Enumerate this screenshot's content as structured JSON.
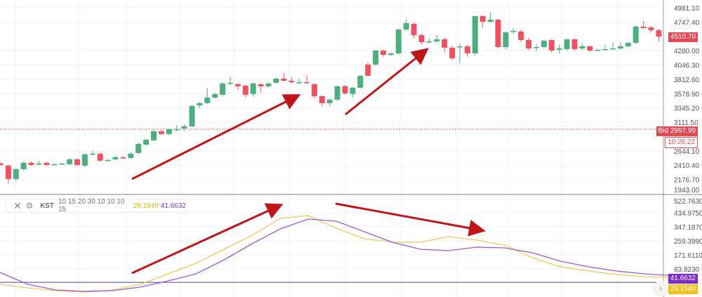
{
  "colors": {
    "up": "#4caf7d",
    "down": "#ef5361",
    "kst": "#9b59d0",
    "signal": "#f0c85a",
    "arrow": "#c0161b",
    "bid": "#e04a55"
  },
  "chart_data": [
    {
      "type": "candlestick",
      "grid": true,
      "y_ticks": [
        "4981.10",
        "4747.40",
        "4280.00",
        "4046.30",
        "3812.60",
        "3578.90",
        "3345.20",
        "3111.50",
        "2644.10",
        "2410.40",
        "2176.70",
        "1943.00"
      ],
      "ylim": [
        1943,
        4981.1
      ],
      "last_price": "4510.70",
      "bid_label": "Bid 2997.99",
      "bid": 2997.99,
      "countdown": "10:26:22",
      "candles": [
        [
          2437,
          2460,
          2400,
          2414
        ],
        [
          2403,
          2420,
          2110,
          2185
        ],
        [
          2185,
          2360,
          2150,
          2345
        ],
        [
          2345,
          2470,
          2320,
          2449
        ],
        [
          2449,
          2470,
          2400,
          2414
        ],
        [
          2437,
          2480,
          2410,
          2437
        ],
        [
          2449,
          2460,
          2400,
          2414
        ],
        [
          2426,
          2440,
          2410,
          2426
        ],
        [
          2437,
          2450,
          2420,
          2437
        ],
        [
          2426,
          2520,
          2410,
          2506
        ],
        [
          2506,
          2520,
          2390,
          2414
        ],
        [
          2403,
          2600,
          2380,
          2586
        ],
        [
          2598,
          2640,
          2570,
          2598
        ],
        [
          2598,
          2610,
          2470,
          2483
        ],
        [
          2494,
          2510,
          2480,
          2494
        ],
        [
          2506,
          2560,
          2490,
          2540
        ],
        [
          2540,
          2560,
          2510,
          2529
        ],
        [
          2529,
          2620,
          2510,
          2598
        ],
        [
          2609,
          2780,
          2590,
          2758
        ],
        [
          2746,
          2840,
          2730,
          2827
        ],
        [
          2815,
          2990,
          2800,
          2964
        ],
        [
          2964,
          2980,
          2900,
          2918
        ],
        [
          2918,
          3010,
          2900,
          2999
        ],
        [
          2999,
          3060,
          2960,
          2999
        ],
        [
          3010,
          3080,
          2970,
          3044
        ],
        [
          3044,
          3390,
          3030,
          3377
        ],
        [
          3388,
          3450,
          3340,
          3423
        ],
        [
          3423,
          3670,
          3410,
          3514
        ],
        [
          3514,
          3590,
          3500,
          3572
        ],
        [
          3560,
          3760,
          3540,
          3744
        ],
        [
          3755,
          3860,
          3720,
          3755
        ],
        [
          3732,
          3750,
          3640,
          3698
        ],
        [
          3709,
          3720,
          3520,
          3560
        ],
        [
          3572,
          3760,
          3530,
          3744
        ],
        [
          3732,
          3750,
          3600,
          3698
        ],
        [
          3698,
          3760,
          3680,
          3744
        ],
        [
          3755,
          3840,
          3740,
          3824
        ],
        [
          3824,
          3920,
          3780,
          3789
        ],
        [
          3789,
          3850,
          3740,
          3766
        ],
        [
          3766,
          3830,
          3730,
          3766
        ],
        [
          3766,
          3880,
          3740,
          3755
        ],
        [
          3732,
          3750,
          3500,
          3537
        ],
        [
          3537,
          3550,
          3380,
          3423
        ],
        [
          3423,
          3500,
          3370,
          3480
        ],
        [
          3480,
          3710,
          3460,
          3698
        ],
        [
          3698,
          3720,
          3560,
          3583
        ],
        [
          3572,
          3690,
          3520,
          3675
        ],
        [
          3675,
          3880,
          3660,
          3870
        ],
        [
          4053,
          4090,
          3860,
          3870
        ],
        [
          4053,
          4300,
          4030,
          4282
        ],
        [
          4282,
          4300,
          4180,
          4213
        ],
        [
          4213,
          4250,
          4190,
          4236
        ],
        [
          4236,
          4640,
          4210,
          4626
        ],
        [
          4626,
          4800,
          4600,
          4729
        ],
        [
          4718,
          4740,
          4480,
          4534
        ],
        [
          4534,
          4560,
          4380,
          4420
        ],
        [
          4431,
          4480,
          4400,
          4431
        ],
        [
          4431,
          4540,
          4410,
          4465
        ],
        [
          4465,
          4490,
          4260,
          4328
        ],
        [
          4328,
          4360,
          4120,
          4156
        ],
        [
          4351,
          4400,
          4070,
          4351
        ],
        [
          4351,
          4380,
          4180,
          4236
        ],
        [
          4236,
          4850,
          4200,
          4844
        ],
        [
          4844,
          4860,
          4660,
          4752
        ],
        [
          4752,
          4913,
          4740,
          4786
        ],
        [
          4786,
          4800,
          4320,
          4339
        ],
        [
          4339,
          4590,
          4300,
          4580
        ],
        [
          4603,
          4650,
          4560,
          4603
        ],
        [
          4592,
          4620,
          4420,
          4454
        ],
        [
          4454,
          4490,
          4280,
          4317
        ],
        [
          4328,
          4390,
          4270,
          4339
        ],
        [
          4339,
          4460,
          4320,
          4443
        ],
        [
          4454,
          4470,
          4250,
          4283
        ],
        [
          4294,
          4380,
          4230,
          4317
        ],
        [
          4305,
          4470,
          4280,
          4465
        ],
        [
          4465,
          4480,
          4270,
          4305
        ],
        [
          4317,
          4400,
          4290,
          4351
        ],
        [
          4351,
          4360,
          4260,
          4282
        ],
        [
          4294,
          4310,
          4270,
          4294
        ],
        [
          4305,
          4380,
          4280,
          4305
        ],
        [
          4317,
          4420,
          4300,
          4317
        ],
        [
          4317,
          4420,
          4300,
          4351
        ],
        [
          4351,
          4420,
          4330,
          4408
        ],
        [
          4408,
          4690,
          4390,
          4672
        ],
        [
          4672,
          4770,
          4640,
          4649
        ],
        [
          4660,
          4680,
          4580,
          4614
        ],
        [
          4614,
          4640,
          4430,
          4511
        ]
      ]
    },
    {
      "type": "line",
      "name": "KST",
      "params": "10 15 20 30 10 10 10 15",
      "y_ticks": [
        "522.7630",
        "434.9750",
        "347.1870",
        "259.3990",
        "171.6110",
        "83.8230"
      ],
      "ylim": [
        -26,
        540
      ],
      "zero_line": 0,
      "series": [
        {
          "name": "29.1540",
          "color": "#f0c85a",
          "values": [
            -12.8,
            -34.8,
            -52.3,
            -61.1,
            -47.9,
            -12.8,
            53.0,
            118.9,
            206.7,
            294.5,
            399.9,
            417.4,
            338.4,
            272.6,
            250.6,
            250.6,
            285.7,
            263.8,
            233.0,
            154.0,
            96.9,
            70.6,
            48.6,
            35.5,
            29.2
          ]
        },
        {
          "name": "41.6632",
          "color": "#9b59d0",
          "values": [
            61.8,
            -12.8,
            -47.9,
            -56.7,
            -52.3,
            -30.4,
            9.1,
            53.0,
            140.8,
            241.8,
            334.0,
            395.5,
            382.3,
            316.4,
            250.6,
            206.7,
            197.9,
            219.9,
            215.5,
            184.7,
            132.0,
            96.9,
            70.6,
            53.0,
            41.7
          ]
        }
      ]
    }
  ],
  "legend": {
    "name": "KST",
    "params": "10 15 20 30 10 10 10 15",
    "val1": "29.1540",
    "val2": "41.6632"
  }
}
